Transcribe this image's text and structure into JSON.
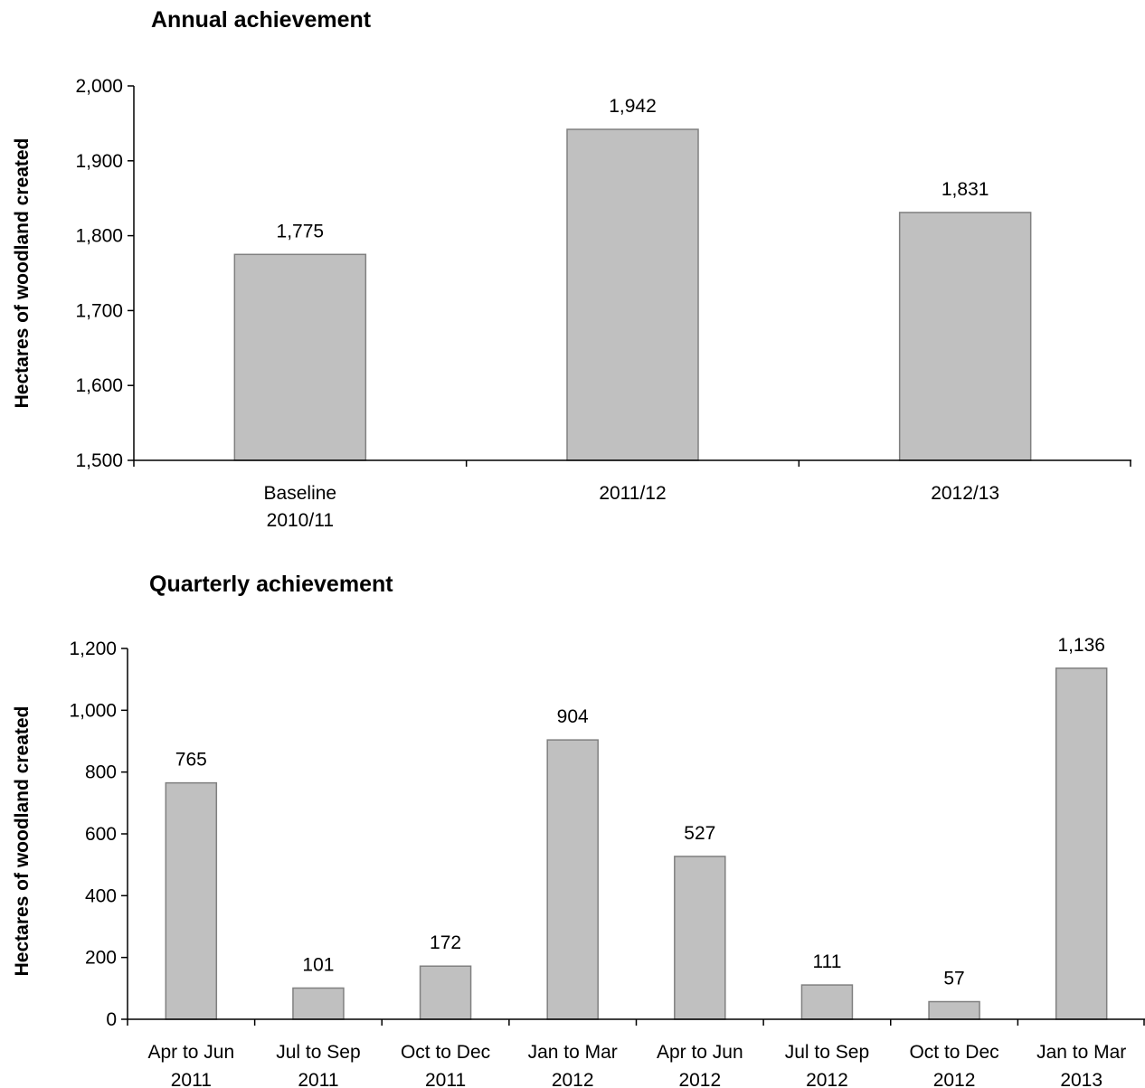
{
  "chart_data": [
    {
      "type": "bar",
      "title": "Annual achievement",
      "xlabel": "",
      "ylabel": "Hectares of woodland created",
      "categories": [
        [
          "Baseline",
          "2010/11"
        ],
        [
          "2011/12"
        ],
        [
          "2012/13"
        ]
      ],
      "values": [
        1775,
        1942,
        1831
      ],
      "value_labels": [
        "1,775",
        "1,942",
        "1,831"
      ],
      "ylim": [
        1500,
        2000
      ],
      "yticks": [
        1500,
        1600,
        1700,
        1800,
        1900,
        2000
      ],
      "ytick_labels": [
        "1,500",
        "1,600",
        "1,700",
        "1,800",
        "1,900",
        "2,000"
      ],
      "grid": false,
      "bar_color": "#c0c0c0",
      "bar_edge_color": "#808080"
    },
    {
      "type": "bar",
      "title": "Quarterly achievement",
      "xlabel": "",
      "ylabel": "Hectares of woodland created",
      "categories": [
        [
          "Apr to Jun",
          "2011"
        ],
        [
          "Jul to Sep",
          "2011"
        ],
        [
          "Oct to Dec",
          "2011"
        ],
        [
          "Jan to Mar",
          "2012"
        ],
        [
          "Apr to Jun",
          "2012"
        ],
        [
          "Jul to Sep",
          "2012"
        ],
        [
          "Oct to Dec",
          "2012"
        ],
        [
          "Jan to Mar",
          "2013"
        ]
      ],
      "values": [
        765,
        101,
        172,
        904,
        527,
        111,
        57,
        1136
      ],
      "value_labels": [
        "765",
        "101",
        "172",
        "904",
        "527",
        "111",
        "57",
        "1,136"
      ],
      "ylim": [
        0,
        1200
      ],
      "yticks": [
        0,
        200,
        400,
        600,
        800,
        1000,
        1200
      ],
      "ytick_labels": [
        "0",
        "200",
        "400",
        "600",
        "800",
        "1,000",
        "1,200"
      ],
      "grid": false,
      "bar_color": "#c0c0c0",
      "bar_edge_color": "#808080"
    }
  ]
}
